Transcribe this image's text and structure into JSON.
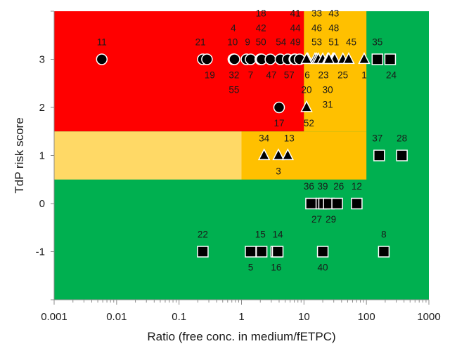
{
  "chart_data": {
    "type": "scatter",
    "title": "",
    "xlabel": "Ratio (free conc. in medium/fETPC)",
    "ylabel": "TdP risk score",
    "xscale": "log",
    "xlim": [
      0.001,
      1000
    ],
    "ylim": [
      -2,
      4
    ],
    "x_ticks": [
      {
        "value": 0.001,
        "label": "0.001"
      },
      {
        "value": 0.01,
        "label": "0.01"
      },
      {
        "value": 0.1,
        "label": "0.1"
      },
      {
        "value": 1,
        "label": "1"
      },
      {
        "value": 10,
        "label": "10"
      },
      {
        "value": 100,
        "label": "100"
      },
      {
        "value": 1000,
        "label": "1000"
      }
    ],
    "y_ticks": [
      {
        "value": -1,
        "label": "-1"
      },
      {
        "value": 0,
        "label": "0"
      },
      {
        "value": 1,
        "label": "1"
      },
      {
        "value": 2,
        "label": "2"
      },
      {
        "value": 3,
        "label": "3"
      }
    ],
    "grid": false,
    "legend": "none",
    "colors": {
      "background": "#00b050",
      "red_zone": "#ff0000",
      "orange_zone": "#ffc000",
      "light_orange_zone": "#ffd966",
      "marker_fill": "#000000",
      "marker_stroke": "#ffffff"
    },
    "zones": [
      {
        "name": "red",
        "x": [
          0.001,
          10
        ],
        "y": [
          1.5,
          4
        ],
        "color": "#ff0000"
      },
      {
        "name": "orange-upper",
        "x": [
          10,
          100
        ],
        "y": [
          1.5,
          4
        ],
        "color": "#ffc000"
      },
      {
        "name": "orange-mid",
        "x": [
          1,
          100
        ],
        "y": [
          0.5,
          1.5
        ],
        "color": "#ffc000"
      },
      {
        "name": "light-orange",
        "x": [
          0.001,
          1
        ],
        "y": [
          0.5,
          1.5
        ],
        "color": "#ffd966"
      }
    ],
    "series": [
      {
        "marker": "circle",
        "points": [
          {
            "label": "11",
            "x": 0.0058,
            "y": 3
          },
          {
            "label": "21",
            "x": 0.24,
            "y": 3
          },
          {
            "label": "19",
            "x": 0.28,
            "y": 3
          },
          {
            "label": "4",
            "x": 0.74,
            "y": 3
          },
          {
            "label": "10",
            "x": 0.75,
            "y": 3
          },
          {
            "label": "32",
            "x": 0.76,
            "y": 3
          },
          {
            "label": "55",
            "x": 0.77,
            "y": 3
          },
          {
            "label": "9",
            "x": 1.2,
            "y": 3
          },
          {
            "label": "7",
            "x": 1.4,
            "y": 3
          },
          {
            "label": "18",
            "x": 2.0,
            "y": 3
          },
          {
            "label": "42",
            "x": 2.05,
            "y": 3
          },
          {
            "label": "50",
            "x": 2.1,
            "y": 3
          },
          {
            "label": "47",
            "x": 2.9,
            "y": 3
          },
          {
            "label": "54",
            "x": 4.2,
            "y": 3
          },
          {
            "label": "57",
            "x": 5.5,
            "y": 3
          },
          {
            "label": "41",
            "x": 7.0,
            "y": 3
          },
          {
            "label": "44",
            "x": 7.2,
            "y": 3
          },
          {
            "label": "49",
            "x": 8.5,
            "y": 3
          },
          {
            "label": "17",
            "x": 4.0,
            "y": 2
          }
        ]
      },
      {
        "marker": "triangle",
        "points": [
          {
            "label": "6",
            "x": 11.5,
            "y": 3
          },
          {
            "label": "33",
            "x": 15,
            "y": 3
          },
          {
            "label": "46",
            "x": 16,
            "y": 3
          },
          {
            "label": "53",
            "x": 17,
            "y": 3
          },
          {
            "label": "20",
            "x": 11,
            "y": 3
          },
          {
            "label": "23",
            "x": 20,
            "y": 3
          },
          {
            "label": "43",
            "x": 29,
            "y": 3
          },
          {
            "label": "48",
            "x": 30,
            "y": 3
          },
          {
            "label": "51",
            "x": 31,
            "y": 3
          },
          {
            "label": "30",
            "x": 24,
            "y": 3
          },
          {
            "label": "31",
            "x": 25,
            "y": 3
          },
          {
            "label": "25",
            "x": 42,
            "y": 3
          },
          {
            "label": "45",
            "x": 52,
            "y": 3
          },
          {
            "label": "1",
            "x": 92,
            "y": 3
          },
          {
            "label": "52",
            "x": 11,
            "y": 2
          },
          {
            "label": "34",
            "x": 2.3,
            "y": 1
          },
          {
            "label": "3",
            "x": 3.9,
            "y": 1
          },
          {
            "label": "13",
            "x": 5.5,
            "y": 1
          }
        ]
      },
      {
        "marker": "square",
        "points": [
          {
            "label": "35",
            "x": 150,
            "y": 3
          },
          {
            "label": "24",
            "x": 240,
            "y": 3
          },
          {
            "label": "37",
            "x": 160,
            "y": 1
          },
          {
            "label": "28",
            "x": 370,
            "y": 1
          },
          {
            "label": "36",
            "x": 13,
            "y": 0
          },
          {
            "label": "39",
            "x": 19,
            "y": 0
          },
          {
            "label": "27",
            "x": 21,
            "y": 0
          },
          {
            "label": "29",
            "x": 25,
            "y": 0
          },
          {
            "label": "26",
            "x": 34,
            "y": 0
          },
          {
            "label": "12",
            "x": 70,
            "y": 0
          },
          {
            "label": "22",
            "x": 0.24,
            "y": -1
          },
          {
            "label": "5",
            "x": 1.4,
            "y": -1
          },
          {
            "label": "15",
            "x": 2.1,
            "y": -1
          },
          {
            "label": "16",
            "x": 3.6,
            "y": -1
          },
          {
            "label": "14",
            "x": 3.8,
            "y": -1
          },
          {
            "label": "40",
            "x": 20,
            "y": -1
          },
          {
            "label": "8",
            "x": 190,
            "y": -1
          }
        ]
      }
    ],
    "data_labels": [
      {
        "text": "11",
        "x": 0.0058,
        "y": 3,
        "pos": "above"
      },
      {
        "text": "21",
        "x": 0.22,
        "y": 3,
        "pos": "above"
      },
      {
        "text": "19",
        "x": 0.31,
        "y": 3,
        "pos": "below"
      },
      {
        "text": "4",
        "x": 0.74,
        "y": 3,
        "pos": "above3"
      },
      {
        "text": "10",
        "x": 0.72,
        "y": 3,
        "pos": "above"
      },
      {
        "text": "32",
        "x": 0.76,
        "y": 3,
        "pos": "below"
      },
      {
        "text": "55",
        "x": 0.76,
        "y": 3,
        "pos": "below2"
      },
      {
        "text": "9",
        "x": 1.25,
        "y": 3,
        "pos": "above"
      },
      {
        "text": "7",
        "x": 1.4,
        "y": 3,
        "pos": "below"
      },
      {
        "text": "18",
        "x": 2.05,
        "y": 3,
        "pos": "above4"
      },
      {
        "text": "42",
        "x": 2.05,
        "y": 3,
        "pos": "above3"
      },
      {
        "text": "50",
        "x": 2.05,
        "y": 3,
        "pos": "above"
      },
      {
        "text": "47",
        "x": 3.0,
        "y": 3,
        "pos": "below"
      },
      {
        "text": "54",
        "x": 4.3,
        "y": 3,
        "pos": "above"
      },
      {
        "text": "57",
        "x": 5.8,
        "y": 3,
        "pos": "below"
      },
      {
        "text": "41",
        "x": 7.3,
        "y": 3,
        "pos": "above4"
      },
      {
        "text": "44",
        "x": 7.3,
        "y": 3,
        "pos": "above3"
      },
      {
        "text": "49",
        "x": 7.3,
        "y": 3,
        "pos": "above"
      },
      {
        "text": "33",
        "x": 16,
        "y": 3,
        "pos": "above4"
      },
      {
        "text": "46",
        "x": 16,
        "y": 3,
        "pos": "above3"
      },
      {
        "text": "53",
        "x": 16,
        "y": 3,
        "pos": "above"
      },
      {
        "text": "6",
        "x": 11.3,
        "y": 3,
        "pos": "below"
      },
      {
        "text": "20",
        "x": 11,
        "y": 3,
        "pos": "below2"
      },
      {
        "text": "23",
        "x": 20.5,
        "y": 3,
        "pos": "below"
      },
      {
        "text": "43",
        "x": 30,
        "y": 3,
        "pos": "above4"
      },
      {
        "text": "48",
        "x": 30,
        "y": 3,
        "pos": "above3"
      },
      {
        "text": "51",
        "x": 30,
        "y": 3,
        "pos": "above"
      },
      {
        "text": "30",
        "x": 24,
        "y": 3,
        "pos": "below2"
      },
      {
        "text": "31",
        "x": 24,
        "y": 3,
        "pos": "below3"
      },
      {
        "text": "25",
        "x": 42,
        "y": 3,
        "pos": "below"
      },
      {
        "text": "45",
        "x": 57,
        "y": 3,
        "pos": "above"
      },
      {
        "text": "1",
        "x": 92,
        "y": 3,
        "pos": "below"
      },
      {
        "text": "35",
        "x": 150,
        "y": 3,
        "pos": "above"
      },
      {
        "text": "24",
        "x": 250,
        "y": 3,
        "pos": "below"
      },
      {
        "text": "17",
        "x": 4.0,
        "y": 2,
        "pos": "below"
      },
      {
        "text": "52",
        "x": 12,
        "y": 2,
        "pos": "below"
      },
      {
        "text": "34",
        "x": 2.3,
        "y": 1,
        "pos": "above"
      },
      {
        "text": "13",
        "x": 5.8,
        "y": 1,
        "pos": "above"
      },
      {
        "text": "3",
        "x": 3.9,
        "y": 1,
        "pos": "below"
      },
      {
        "text": "37",
        "x": 150,
        "y": 1,
        "pos": "above"
      },
      {
        "text": "28",
        "x": 370,
        "y": 1,
        "pos": "above"
      },
      {
        "text": "36",
        "x": 12,
        "y": 0,
        "pos": "above"
      },
      {
        "text": "39",
        "x": 20,
        "y": 0,
        "pos": "above"
      },
      {
        "text": "26",
        "x": 36,
        "y": 0,
        "pos": "above"
      },
      {
        "text": "12",
        "x": 70,
        "y": 0,
        "pos": "above"
      },
      {
        "text": "27",
        "x": 16,
        "y": 0,
        "pos": "below"
      },
      {
        "text": "29",
        "x": 27,
        "y": 0,
        "pos": "below"
      },
      {
        "text": "22",
        "x": 0.24,
        "y": -1,
        "pos": "above"
      },
      {
        "text": "15",
        "x": 2.0,
        "y": -1,
        "pos": "above"
      },
      {
        "text": "14",
        "x": 3.8,
        "y": -1,
        "pos": "above"
      },
      {
        "text": "5",
        "x": 1.4,
        "y": -1,
        "pos": "below"
      },
      {
        "text": "16",
        "x": 3.6,
        "y": -1,
        "pos": "below"
      },
      {
        "text": "40",
        "x": 20,
        "y": -1,
        "pos": "below"
      },
      {
        "text": "8",
        "x": 190,
        "y": -1,
        "pos": "above"
      }
    ]
  }
}
